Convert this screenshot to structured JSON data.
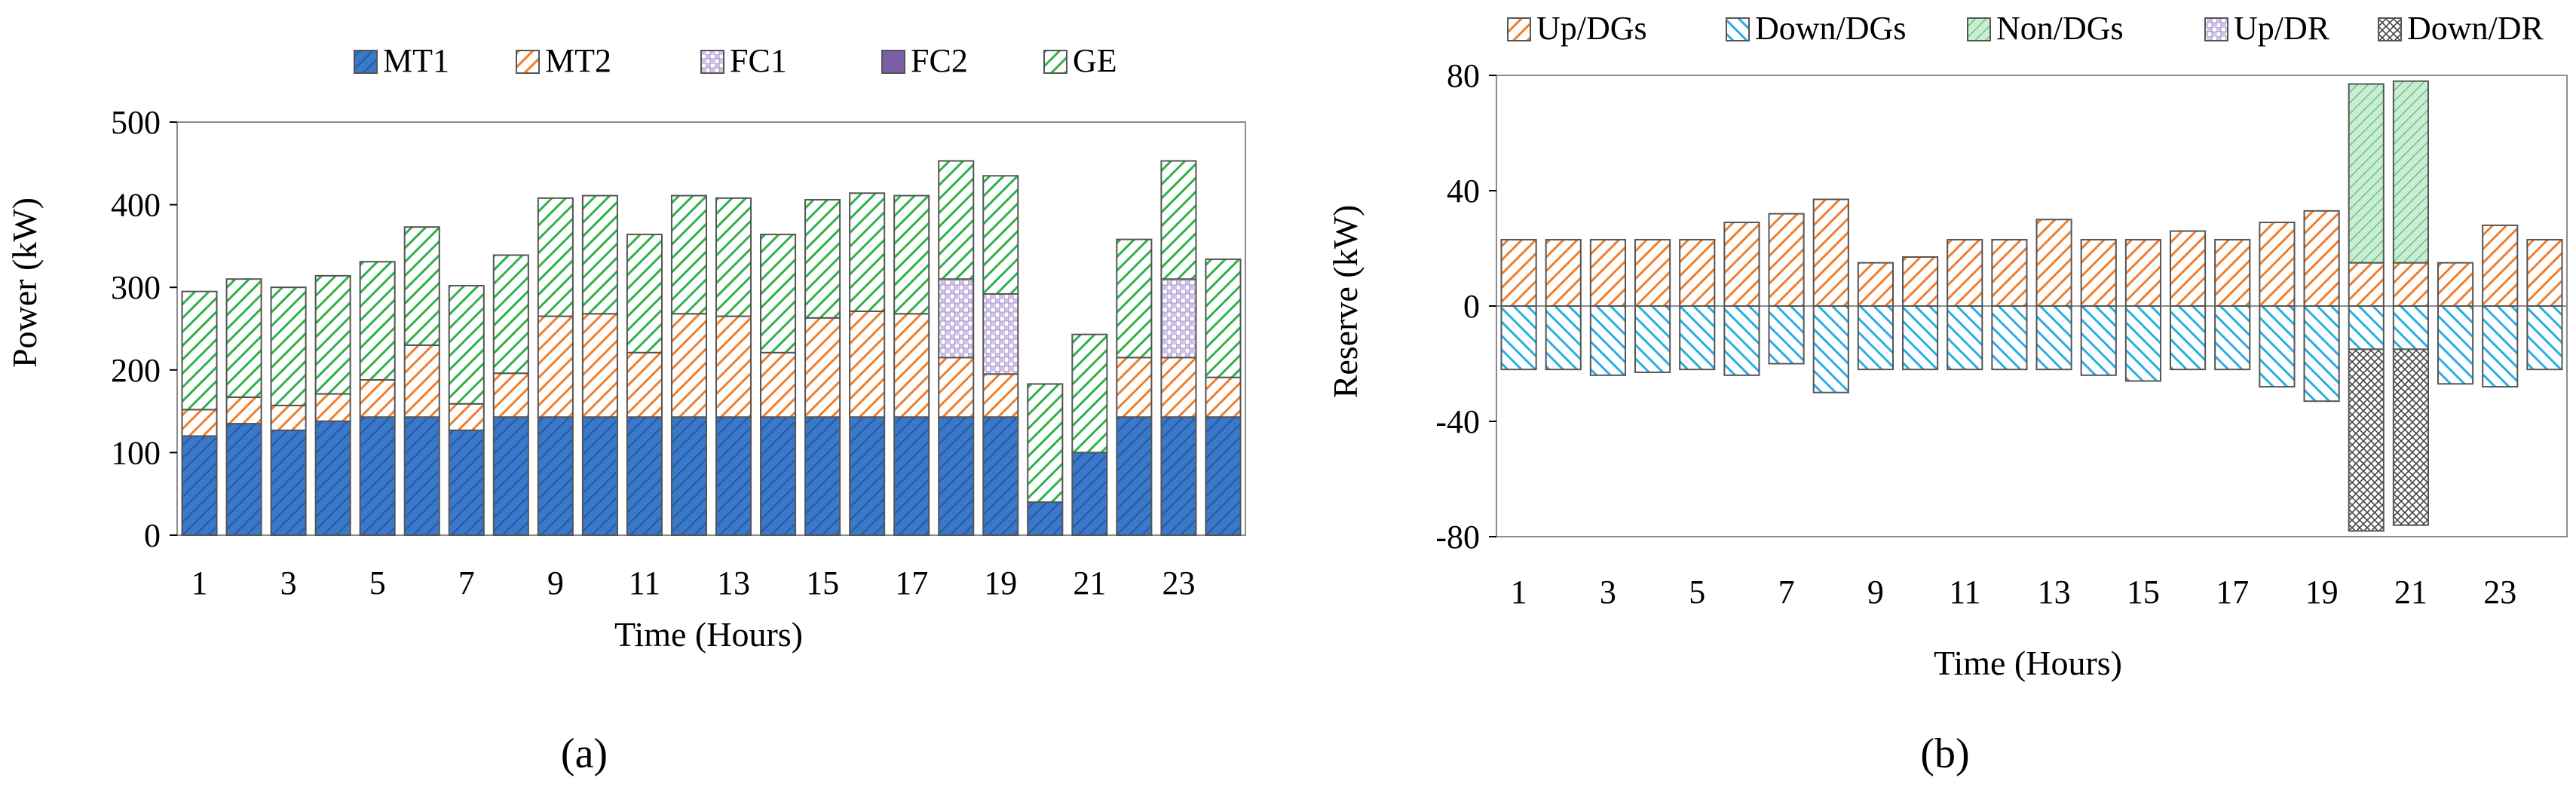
{
  "colors": {
    "MT1": "#3a78c9",
    "MT2": "#f07f2c",
    "FC1": "#8e82b8",
    "FC2": "#7a5ea8",
    "GE": "#2fb24c",
    "UpDGs": "#f07f2c",
    "DownDGs": "#29aee6",
    "NonDGs": "#39b45a",
    "UpDR": "#9b7cc7",
    "DownDR": "#555555"
  },
  "chart_data": [
    {
      "type": "bar",
      "stacked": true,
      "panel_label": "(a)",
      "xlabel": "Time (Hours)",
      "ylabel": "Power (kW)",
      "ylim": [
        0,
        500
      ],
      "yticks": [
        0,
        100,
        200,
        300,
        400,
        500
      ],
      "categories": [
        1,
        2,
        3,
        4,
        5,
        6,
        7,
        8,
        9,
        10,
        11,
        12,
        13,
        14,
        15,
        16,
        17,
        18,
        19,
        20,
        21,
        22,
        23,
        24
      ],
      "xtick_labels": [
        "1",
        "3",
        "5",
        "7",
        "9",
        "11",
        "13",
        "15",
        "17",
        "19",
        "21",
        "23"
      ],
      "legend": [
        "MT1",
        "MT2",
        "FC1",
        "FC2",
        "GE"
      ],
      "legend_position": "top",
      "series": [
        {
          "name": "MT1",
          "values": [
            120,
            135,
            127,
            138,
            143,
            143,
            127,
            143,
            143,
            143,
            143,
            143,
            143,
            143,
            143,
            143,
            143,
            143,
            143,
            40,
            100,
            143,
            143,
            143
          ]
        },
        {
          "name": "MT2",
          "values": [
            32,
            32,
            30,
            33,
            45,
            87,
            32,
            53,
            122,
            125,
            78,
            125,
            122,
            78,
            120,
            128,
            125,
            72,
            52,
            0,
            0,
            72,
            72,
            48
          ]
        },
        {
          "name": "FC1",
          "values": [
            0,
            0,
            0,
            0,
            0,
            0,
            0,
            0,
            0,
            0,
            0,
            0,
            0,
            0,
            0,
            0,
            0,
            95,
            97,
            0,
            0,
            0,
            95,
            0
          ]
        },
        {
          "name": "FC2",
          "values": [
            0,
            0,
            0,
            0,
            0,
            0,
            0,
            0,
            0,
            0,
            0,
            0,
            0,
            0,
            0,
            0,
            0,
            0,
            0,
            0,
            0,
            0,
            0,
            0
          ]
        },
        {
          "name": "GE",
          "values": [
            143,
            143,
            143,
            143,
            143,
            143,
            143,
            143,
            143,
            143,
            143,
            143,
            143,
            143,
            143,
            143,
            143,
            143,
            143,
            143,
            143,
            143,
            143,
            143
          ]
        }
      ]
    },
    {
      "type": "bar",
      "stacked": true,
      "panel_label": "(b)",
      "xlabel": "Time (Hours)",
      "ylabel": "Reserve (kW)",
      "ylim": [
        -80,
        80
      ],
      "yticks": [
        -80,
        -40,
        0,
        40,
        80
      ],
      "categories": [
        1,
        2,
        3,
        4,
        5,
        6,
        7,
        8,
        9,
        10,
        11,
        12,
        13,
        14,
        15,
        16,
        17,
        18,
        19,
        20,
        21,
        22,
        23,
        24
      ],
      "xtick_labels": [
        "1",
        "3",
        "5",
        "7",
        "9",
        "11",
        "13",
        "15",
        "17",
        "19",
        "21",
        "23"
      ],
      "legend": [
        "Up/DGs",
        "Down/DGs",
        "Non/DGs",
        "Up/DR",
        "Down/DR"
      ],
      "legend_position": "top",
      "series": [
        {
          "name": "Up/DGs",
          "values": [
            23,
            23,
            23,
            23,
            23,
            29,
            32,
            37,
            15,
            17,
            23,
            23,
            30,
            23,
            23,
            26,
            23,
            29,
            33,
            15,
            15,
            15,
            28,
            23
          ]
        },
        {
          "name": "Down/DGs",
          "values": [
            -22,
            -22,
            -24,
            -23,
            -22,
            -24,
            -20,
            -30,
            -22,
            -22,
            -22,
            -22,
            -22,
            -24,
            -26,
            -22,
            -22,
            -28,
            -33,
            -15,
            -15,
            -27,
            -28,
            -22
          ]
        },
        {
          "name": "Non/DGs",
          "values": [
            0,
            0,
            0,
            0,
            0,
            0,
            0,
            0,
            0,
            0,
            0,
            0,
            0,
            0,
            0,
            0,
            0,
            0,
            0,
            62,
            63,
            0,
            0,
            0
          ]
        },
        {
          "name": "Up/DR",
          "values": [
            0,
            0,
            0,
            0,
            0,
            0,
            0,
            0,
            0,
            0,
            0,
            0,
            0,
            0,
            0,
            0,
            0,
            0,
            0,
            0,
            0,
            0,
            0,
            0
          ]
        },
        {
          "name": "Down/DR",
          "values": [
            0,
            0,
            0,
            0,
            0,
            0,
            0,
            0,
            0,
            0,
            0,
            0,
            0,
            0,
            0,
            0,
            0,
            0,
            0,
            -63,
            -61,
            0,
            0,
            0
          ]
        }
      ]
    }
  ]
}
